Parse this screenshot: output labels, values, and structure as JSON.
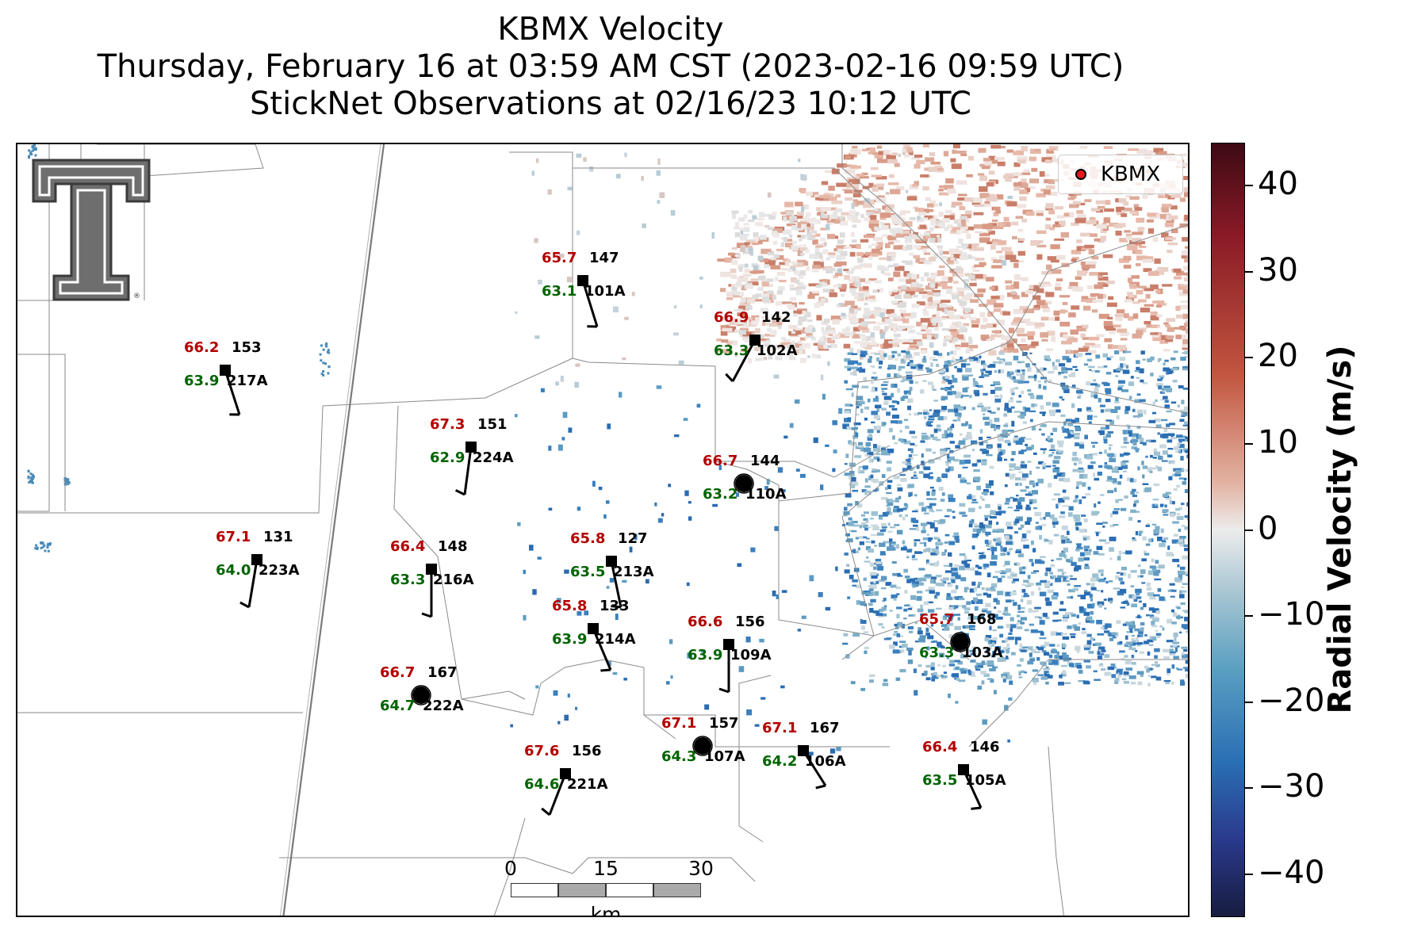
{
  "title": {
    "line1": "KBMX Velocity",
    "line2": "Thursday, February 16 at 03:59 AM CST (2023-02-16 09:59 UTC)",
    "line3": "StickNet Observations at 02/16/23 10:12 UTC"
  },
  "legend": {
    "label": "KBMX",
    "marker_color": "#e41a1c"
  },
  "scalebar": {
    "ticks": [
      "0",
      "15",
      "30"
    ],
    "unit": "km"
  },
  "colorbar": {
    "title": "Radial Velocity (m/s)",
    "range": [
      -45,
      45
    ],
    "ticks": [
      "40",
      "30",
      "20",
      "10",
      "0",
      "−10",
      "−20",
      "−30",
      "−40"
    ],
    "tick_values": [
      40,
      30,
      20,
      10,
      0,
      -10,
      -20,
      -30,
      -40
    ]
  },
  "colors": {
    "temperature": "#b30000",
    "dewpoint": "#006400",
    "station_id": "#000000"
  },
  "logo": {
    "name": "texas-tech-double-t-logo"
  },
  "stations": [
    {
      "id": "101A",
      "temp": "65.7",
      "dewpoint": "63.1",
      "pressure": "147"
    },
    {
      "id": "102A",
      "temp": "66.9",
      "dewpoint": "63.3",
      "pressure": "142"
    },
    {
      "id": "217A",
      "temp": "66.2",
      "dewpoint": "63.9",
      "pressure": "153"
    },
    {
      "id": "224A",
      "temp": "67.3",
      "dewpoint": "62.9",
      "pressure": "151"
    },
    {
      "id": "110A",
      "temp": "66.7",
      "dewpoint": "63.2",
      "pressure": "144"
    },
    {
      "id": "223A",
      "temp": "67.1",
      "dewpoint": "64.0",
      "pressure": "131"
    },
    {
      "id": "216A",
      "temp": "66.4",
      "dewpoint": "63.3",
      "pressure": "148"
    },
    {
      "id": "213A",
      "temp": "65.8",
      "dewpoint": "63.5",
      "pressure": "127"
    },
    {
      "id": "214A",
      "temp": "65.8",
      "dewpoint": "63.9",
      "pressure": "133"
    },
    {
      "id": "109A",
      "temp": "66.6",
      "dewpoint": "63.9",
      "pressure": "156"
    },
    {
      "id": "103A",
      "temp": "65.7",
      "dewpoint": "63.3",
      "pressure": "168"
    },
    {
      "id": "222A",
      "temp": "66.7",
      "dewpoint": "64.7",
      "pressure": "167"
    },
    {
      "id": "107A",
      "temp": "67.1",
      "dewpoint": "64.3",
      "pressure": "157"
    },
    {
      "id": "106A",
      "temp": "67.1",
      "dewpoint": "64.2",
      "pressure": "167"
    },
    {
      "id": "221A",
      "temp": "67.6",
      "dewpoint": "64.6",
      "pressure": "156"
    },
    {
      "id": "105A",
      "temp": "66.4",
      "dewpoint": "63.5",
      "pressure": "146"
    }
  ]
}
